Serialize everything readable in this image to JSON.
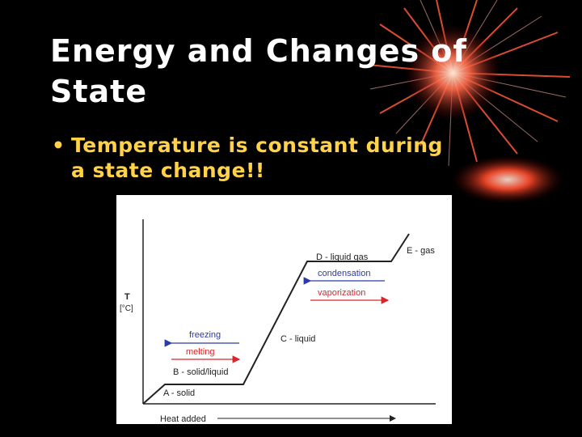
{
  "slide": {
    "title_lines": [
      "Energy and Changes of",
      "State"
    ],
    "bullet_symbol": "•",
    "bullet_lines": [
      "Temperature is constant during",
      "a state change!!"
    ]
  },
  "diagram": {
    "y_axis_label": "T",
    "y_axis_unit": "[°C]",
    "x_axis_label": "Heat added",
    "stages": {
      "a": "A - solid",
      "b": "B - solid/liquid",
      "c": "C - liquid",
      "d": "D - liquid gas",
      "e": "E - gas"
    },
    "arrows": {
      "freezing": "freezing",
      "melting": "melting",
      "condensation": "condensation",
      "vaporization": "vaporization"
    },
    "colors": {
      "cooling_arrow": "#2b3aa8",
      "heating_arrow": "#d9262c",
      "curve": "#222222"
    }
  }
}
